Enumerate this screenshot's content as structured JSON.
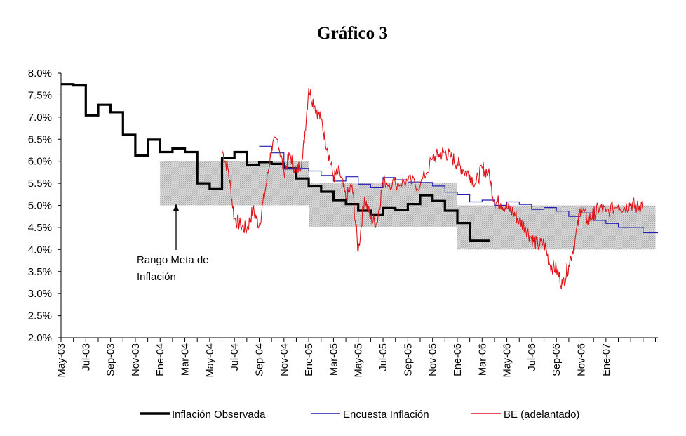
{
  "chart_data": {
    "type": "line",
    "title": "Gráfico 3",
    "xlabel": "",
    "ylabel": "",
    "ylim": [
      0.02,
      0.08
    ],
    "y_ticks": [
      "8.0%",
      "7.5%",
      "7.0%",
      "6.5%",
      "6.0%",
      "5.5%",
      "5.0%",
      "4.5%",
      "4.0%",
      "3.5%",
      "3.0%",
      "2.5%",
      "2.0%"
    ],
    "y_tick_values": [
      0.08,
      0.075,
      0.07,
      0.065,
      0.06,
      0.055,
      0.05,
      0.045,
      0.04,
      0.035,
      0.03,
      0.025,
      0.02
    ],
    "x_range_months": [
      0,
      48.2
    ],
    "x_ticks": [
      "May-03",
      "Jul-03",
      "Sep-03",
      "Nov-03",
      "Ene-04",
      "Mar-04",
      "May-04",
      "Jul-04",
      "Sep-04",
      "Nov-04",
      "Ene-05",
      "Mar-05",
      "May-05",
      "Jul-05",
      "Sep-05",
      "Nov-05",
      "Ene-06",
      "Mar-06",
      "May-06",
      "Jul-06",
      "Sep-06",
      "Nov-06",
      "Ene-07"
    ],
    "x_tick_months": [
      0,
      2,
      4,
      6,
      8,
      10,
      12,
      14,
      16,
      18,
      20,
      22,
      24,
      26,
      28,
      30,
      32,
      34,
      36,
      38,
      40,
      42,
      44
    ],
    "target_range_label": "Rango Meta de\nInflación",
    "target_range_lines": [
      "Rango Meta de",
      "Inflación"
    ],
    "target_ranges": [
      {
        "x_start": 8,
        "x_end": 20,
        "low": 0.05,
        "high": 0.06
      },
      {
        "x_start": 20,
        "x_end": 32,
        "low": 0.045,
        "high": 0.055
      },
      {
        "x_start": 32,
        "x_end": 48,
        "low": 0.04,
        "high": 0.05
      }
    ],
    "series": [
      {
        "name": "Inflación Observada",
        "color": "#000000",
        "style": "thick-step",
        "points": [
          [
            0,
            0.0775
          ],
          [
            1,
            0.0772
          ],
          [
            2,
            0.0704
          ],
          [
            3,
            0.0728
          ],
          [
            4,
            0.0711
          ],
          [
            5,
            0.066
          ],
          [
            6,
            0.0613
          ],
          [
            7,
            0.0649
          ],
          [
            8,
            0.0621
          ],
          [
            9,
            0.0629
          ],
          [
            10,
            0.0621
          ],
          [
            11,
            0.055
          ],
          [
            12,
            0.0537
          ],
          [
            13,
            0.0608
          ],
          [
            14,
            0.0621
          ],
          [
            15,
            0.0592
          ],
          [
            16,
            0.0598
          ],
          [
            17,
            0.0594
          ],
          [
            18,
            0.0584
          ],
          [
            19,
            0.0561
          ],
          [
            20,
            0.0543
          ],
          [
            21,
            0.0531
          ],
          [
            22,
            0.0512
          ],
          [
            23,
            0.0503
          ],
          [
            24,
            0.0488
          ],
          [
            25,
            0.0478
          ],
          [
            26,
            0.0494
          ],
          [
            27,
            0.0489
          ],
          [
            28,
            0.0503
          ],
          [
            29,
            0.0523
          ],
          [
            30,
            0.051
          ],
          [
            31,
            0.0488
          ],
          [
            32,
            0.046
          ],
          [
            33,
            0.042
          ],
          [
            34,
            0.042
          ]
        ],
        "x_end": 34.6
      },
      {
        "name": "Encuesta Inflación",
        "color": "#1f1fb4",
        "style": "step",
        "points": [
          [
            16,
            0.0634
          ],
          [
            17,
            0.0619
          ],
          [
            18,
            0.0584
          ],
          [
            20,
            0.0578
          ],
          [
            21,
            0.0568
          ],
          [
            22,
            0.0555
          ],
          [
            23,
            0.0565
          ],
          [
            24,
            0.0548
          ],
          [
            25,
            0.054
          ],
          [
            26,
            0.0563
          ],
          [
            27,
            0.0558
          ],
          [
            28,
            0.0553
          ],
          [
            29,
            0.0552
          ],
          [
            30,
            0.0544
          ],
          [
            31,
            0.053
          ],
          [
            32,
            0.0524
          ],
          [
            33,
            0.0508
          ],
          [
            34,
            0.0512
          ],
          [
            35,
            0.05
          ],
          [
            36,
            0.0508
          ],
          [
            37,
            0.0502
          ],
          [
            38,
            0.0491
          ],
          [
            39,
            0.0495
          ],
          [
            40,
            0.0487
          ],
          [
            41,
            0.0475
          ],
          [
            42,
            0.0483
          ],
          [
            43,
            0.0466
          ],
          [
            44,
            0.0459
          ],
          [
            45,
            0.045
          ],
          [
            47,
            0.0438
          ]
        ],
        "x_end": 48.2
      },
      {
        "name": "BE (adelantado)",
        "color": "#e0141a",
        "style": "line",
        "points": [
          [
            13,
            0.0625
          ],
          [
            13.5,
            0.058
          ],
          [
            14,
            0.047
          ],
          [
            14.5,
            0.0455
          ],
          [
            15,
            0.0445
          ],
          [
            15.5,
            0.049
          ],
          [
            16,
            0.0455
          ],
          [
            16.5,
            0.0535
          ],
          [
            17,
            0.063
          ],
          [
            17.5,
            0.065
          ],
          [
            18,
            0.0575
          ],
          [
            18.5,
            0.0615
          ],
          [
            19,
            0.0575
          ],
          [
            19.5,
            0.0605
          ],
          [
            20,
            0.0765
          ],
          [
            20.5,
            0.0725
          ],
          [
            21,
            0.0695
          ],
          [
            21.5,
            0.063
          ],
          [
            22,
            0.0565
          ],
          [
            22.5,
            0.0575
          ],
          [
            23,
            0.0515
          ],
          [
            23.5,
            0.0545
          ],
          [
            24,
            0.0395
          ],
          [
            24.5,
            0.052
          ],
          [
            25,
            0.047
          ],
          [
            25.5,
            0.046
          ],
          [
            26,
            0.0555
          ],
          [
            27,
            0.055
          ],
          [
            28,
            0.0555
          ],
          [
            29,
            0.0545
          ],
          [
            30,
            0.0605
          ],
          [
            30.5,
            0.0615
          ],
          [
            31,
            0.062
          ],
          [
            31.5,
            0.061
          ],
          [
            32,
            0.0595
          ],
          [
            32.5,
            0.058
          ],
          [
            33,
            0.057
          ],
          [
            33.5,
            0.055
          ],
          [
            34,
            0.0585
          ],
          [
            34.5,
            0.0575
          ],
          [
            35,
            0.051
          ],
          [
            35.5,
            0.0505
          ],
          [
            36,
            0.0495
          ],
          [
            36.5,
            0.0485
          ],
          [
            37,
            0.0465
          ],
          [
            37.5,
            0.045
          ],
          [
            38,
            0.0425
          ],
          [
            38.5,
            0.041
          ],
          [
            39,
            0.0415
          ],
          [
            39.5,
            0.0365
          ],
          [
            40,
            0.0355
          ],
          [
            40.5,
            0.032
          ],
          [
            41,
            0.0365
          ],
          [
            41.5,
            0.042
          ],
          [
            42,
            0.05
          ],
          [
            42.5,
            0.0465
          ],
          [
            43,
            0.048
          ],
          [
            43.5,
            0.0495
          ],
          [
            44,
            0.0485
          ],
          [
            45,
            0.05
          ],
          [
            45.5,
            0.0495
          ],
          [
            46,
            0.0505
          ],
          [
            46.5,
            0.0495
          ],
          [
            47,
            0.0505
          ]
        ]
      }
    ]
  },
  "colors": {
    "observed": "#000000",
    "survey": "#1f1fb4",
    "be": "#e0141a",
    "band": "#cfcfcf"
  }
}
